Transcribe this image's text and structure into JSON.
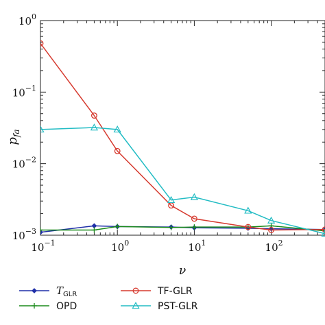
{
  "chart_data": {
    "type": "line",
    "xscale": "log",
    "yscale": "log",
    "xlabel": "ν",
    "ylabel_main": "p",
    "ylabel_sub": "fa",
    "xlim": [
      0.1,
      500
    ],
    "ylim": [
      0.001,
      1
    ],
    "grid": false,
    "legend_placement": "bottom",
    "x_ticks": [
      {
        "value": 0.1,
        "base": "10",
        "exp": "−1"
      },
      {
        "value": 1,
        "base": "10",
        "exp": "0"
      },
      {
        "value": 10,
        "base": "10",
        "exp": "1"
      },
      {
        "value": 100,
        "base": "10",
        "exp": "2"
      }
    ],
    "y_ticks": [
      {
        "value": 1,
        "base": "10",
        "exp": "0"
      },
      {
        "value": 0.1,
        "base": "10",
        "exp": "−1"
      },
      {
        "value": 0.01,
        "base": "10",
        "exp": "−2"
      },
      {
        "value": 0.001,
        "base": "10",
        "exp": "−3"
      }
    ],
    "series": [
      {
        "name": "T",
        "name_sub": "GLR",
        "color": "#1f2fa8",
        "marker": "diamond",
        "x": [
          0.1,
          0.5,
          1,
          5,
          10,
          50,
          100,
          500
        ],
        "y": [
          0.0011,
          0.00135,
          0.00132,
          0.0013,
          0.00127,
          0.00125,
          0.00123,
          0.0012
        ]
      },
      {
        "name": "OPD",
        "color": "#1a8a1a",
        "marker": "plus",
        "x": [
          0.1,
          0.5,
          1,
          5,
          10,
          50,
          100,
          500
        ],
        "y": [
          0.00118,
          0.00118,
          0.00132,
          0.00128,
          0.0013,
          0.0013,
          0.00135,
          0.00115
        ]
      },
      {
        "name": "TF-GLR",
        "color": "#d63a2f",
        "marker": "circle",
        "x": [
          0.1,
          0.5,
          1,
          5,
          10,
          50,
          100,
          500
        ],
        "y": [
          0.48,
          0.047,
          0.015,
          0.0026,
          0.0017,
          0.0013,
          0.00118,
          0.0012
        ]
      },
      {
        "name": "PST-GLR",
        "color": "#22bcc4",
        "marker": "triangle",
        "x": [
          0.1,
          0.5,
          1,
          5,
          10,
          50,
          100,
          500
        ],
        "y": [
          0.03,
          0.032,
          0.03,
          0.0031,
          0.0034,
          0.0022,
          0.0016,
          0.00105
        ]
      }
    ]
  }
}
